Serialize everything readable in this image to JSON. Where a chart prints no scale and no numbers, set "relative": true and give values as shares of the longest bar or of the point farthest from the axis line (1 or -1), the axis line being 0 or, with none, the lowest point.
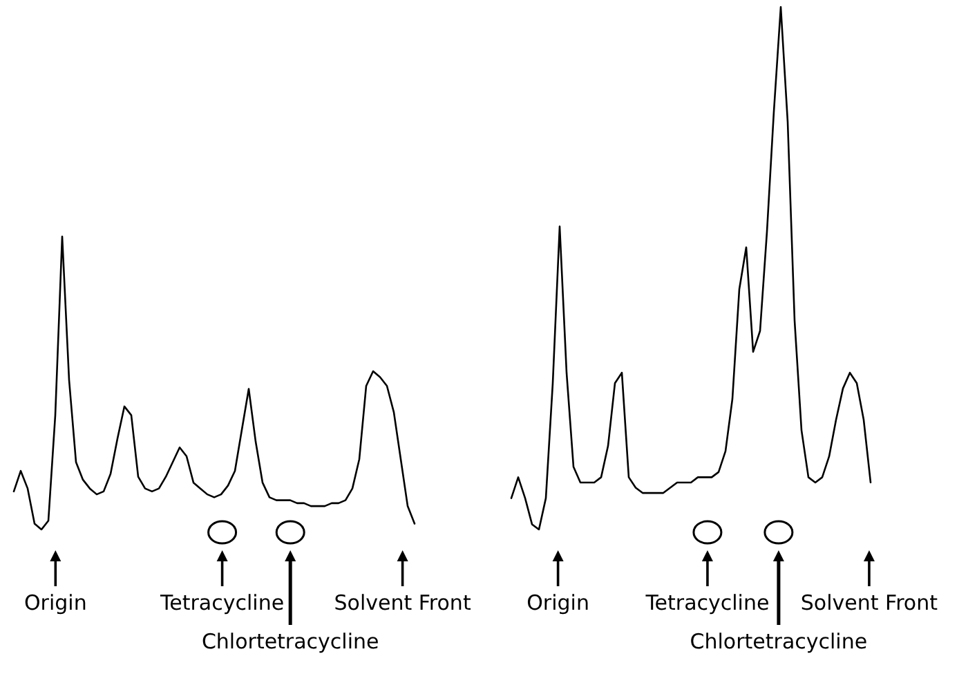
{
  "chart_data": [
    {
      "type": "line",
      "relative": true,
      "tick_labels": false,
      "marker": "none",
      "line_style": "solid",
      "categories": [
        null,
        null,
        null,
        null,
        null,
        null,
        null,
        null,
        null,
        null,
        null,
        null,
        null,
        null,
        null,
        null,
        null,
        null,
        null,
        null,
        null,
        null,
        null,
        null,
        null,
        null,
        null,
        null,
        null,
        null,
        null,
        null,
        null,
        null,
        null,
        null,
        null,
        null,
        null,
        null,
        null,
        null,
        null,
        null,
        null,
        null,
        null,
        null,
        null,
        null,
        null,
        null,
        null,
        null,
        null,
        null,
        null,
        null,
        null
      ],
      "series": [
        {
          "color": "#000000",
          "values": [
            0.13,
            0.2,
            0.14,
            0.02,
            0.0,
            0.03,
            0.39,
            1.0,
            0.51,
            0.23,
            0.17,
            0.14,
            0.12,
            0.13,
            0.19,
            0.31,
            0.42,
            0.39,
            0.18,
            0.14,
            0.13,
            0.14,
            0.18,
            0.23,
            0.28,
            0.25,
            0.16,
            0.14,
            0.12,
            0.11,
            0.12,
            0.15,
            0.2,
            0.34,
            0.48,
            0.3,
            0.16,
            0.11,
            0.1,
            0.1,
            0.1,
            0.09,
            0.09,
            0.08,
            0.08,
            0.08,
            0.09,
            0.09,
            0.1,
            0.14,
            0.24,
            0.49,
            0.54,
            0.52,
            0.49,
            0.4,
            0.24,
            0.08,
            0.02
          ]
        }
      ],
      "annotations": [
        "Origin",
        "Tetracycline",
        "Chlortetracycline",
        "Solvent Front"
      ]
    },
    {
      "type": "line",
      "relative": true,
      "tick_labels": false,
      "marker": "none",
      "line_style": "solid",
      "categories": [
        null,
        null,
        null,
        null,
        null,
        null,
        null,
        null,
        null,
        null,
        null,
        null,
        null,
        null,
        null,
        null,
        null,
        null,
        null,
        null,
        null,
        null,
        null,
        null,
        null,
        null,
        null,
        null,
        null,
        null,
        null,
        null,
        null,
        null,
        null,
        null,
        null,
        null,
        null,
        null,
        null,
        null,
        null,
        null,
        null,
        null,
        null,
        null,
        null,
        null,
        null,
        null,
        null
      ],
      "series": [
        {
          "color": "#000000",
          "values": [
            0.06,
            0.1,
            0.06,
            0.01,
            0.0,
            0.06,
            0.28,
            0.58,
            0.3,
            0.12,
            0.09,
            0.09,
            0.09,
            0.1,
            0.16,
            0.28,
            0.3,
            0.1,
            0.08,
            0.07,
            0.07,
            0.07,
            0.07,
            0.08,
            0.09,
            0.09,
            0.09,
            0.1,
            0.1,
            0.1,
            0.11,
            0.15,
            0.25,
            0.46,
            0.54,
            0.34,
            0.38,
            0.57,
            0.8,
            1.0,
            0.78,
            0.4,
            0.19,
            0.1,
            0.09,
            0.1,
            0.14,
            0.21,
            0.27,
            0.3,
            0.28,
            0.21,
            0.09
          ]
        }
      ],
      "annotations": [
        "Origin",
        "Tetracycline",
        "Chlortetracycline",
        "Solvent Front"
      ]
    }
  ]
}
